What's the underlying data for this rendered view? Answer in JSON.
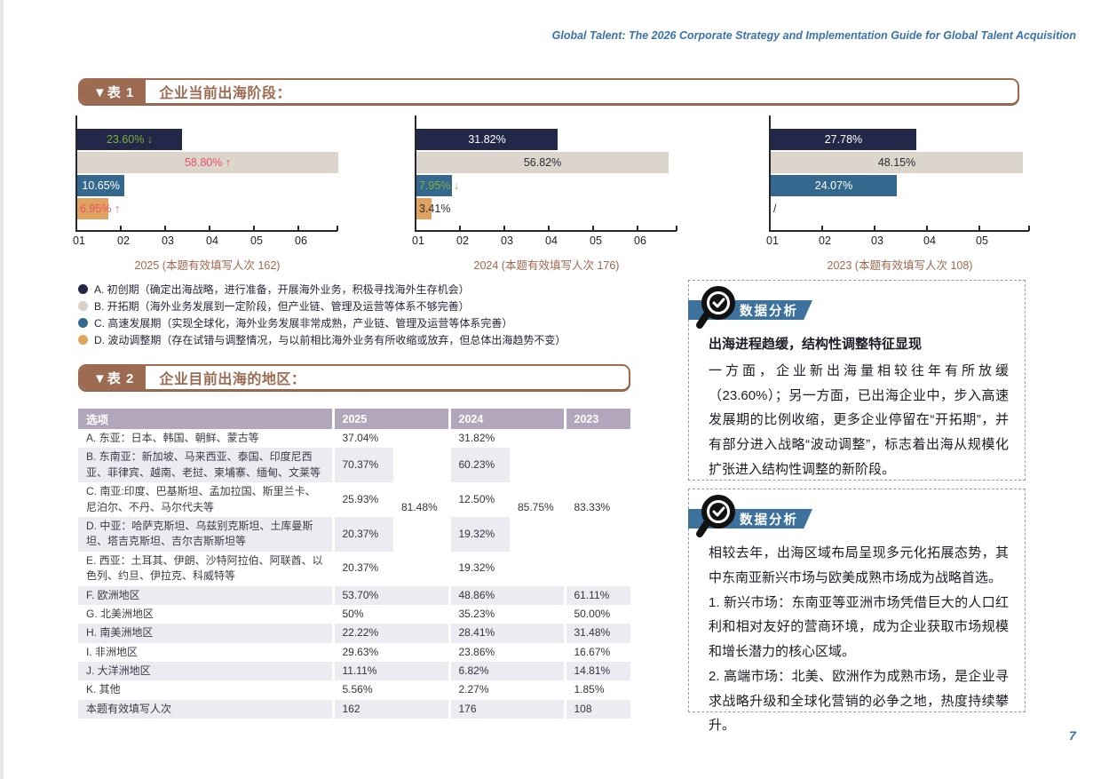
{
  "page": {
    "header_title": "Global Talent: The 2026 Corporate Strategy and Implementation Guide for Global Talent Acquisition",
    "page_number": "7"
  },
  "colors": {
    "brand_brown": "#9c6b52",
    "bar_navy": "#232849",
    "bar_beige": "#dcd5cb",
    "bar_blue": "#35688f",
    "bar_orange": "#e0a35f",
    "label_green": "#7fae3d",
    "label_red": "#e85168",
    "table_header_purple": "#b1a6bc",
    "badge_blue": "#3d729e",
    "accent_blue": "#3a72ae"
  },
  "table1_banner": {
    "tag": "▼表 1",
    "title": "企业当前出海阶段："
  },
  "table2_banner": {
    "tag": "▼表 2",
    "title": "企业目前出海的地区："
  },
  "chart_data": [
    {
      "type": "bar",
      "orientation": "horizontal",
      "caption": "2025 (本题有效填写人次 162)",
      "categories": [
        "A. 初创期",
        "B. 开拓期",
        "C. 高速发展期",
        "D. 波动调整期"
      ],
      "values": [
        23.6,
        58.8,
        10.65,
        6.95
      ],
      "x_ticks": [
        "01",
        "02",
        "03",
        "04",
        "05",
        "06"
      ],
      "tick_step_pct": 10,
      "bars": [
        {
          "label": "23.60%",
          "arrow": "↓",
          "label_color": "#7fae3d",
          "align": "center",
          "color": "#232849"
        },
        {
          "label": "58.80%",
          "arrow": "↑",
          "label_color": "#e85168",
          "align": "center",
          "color": "#dcd5cb"
        },
        {
          "label": "10.65%",
          "arrow": "",
          "label_color": "#ffffff",
          "align": "center",
          "color": "#35688f"
        },
        {
          "label": "6.95%",
          "arrow": "↑",
          "label_color": "#e85168",
          "align": "left",
          "color": "#e0a35f"
        }
      ]
    },
    {
      "type": "bar",
      "orientation": "horizontal",
      "caption": "2024 (本题有效填写人次 176)",
      "categories": [
        "A. 初创期",
        "B. 开拓期",
        "C. 高速发展期",
        "D. 波动调整期"
      ],
      "values": [
        31.82,
        56.82,
        7.95,
        3.41
      ],
      "x_ticks": [
        "01",
        "02",
        "03",
        "04",
        "05",
        "06"
      ],
      "tick_step_pct": 10,
      "bars": [
        {
          "label": "31.82%",
          "arrow": "",
          "label_color": "#ffffff",
          "align": "center",
          "color": "#232849"
        },
        {
          "label": "56.82%",
          "arrow": "",
          "label_color": "#2b2b35",
          "align": "center",
          "color": "#dcd5cb"
        },
        {
          "label": "7.95%",
          "arrow": "↓",
          "label_color": "#7fae3d",
          "align": "left",
          "color": "#35688f"
        },
        {
          "label": "3.41%",
          "arrow": "",
          "label_color": "#2b2b35",
          "align": "left",
          "color": "#e0a35f"
        }
      ]
    },
    {
      "type": "bar",
      "orientation": "horizontal",
      "caption": "2023 (本题有效填写人次 108)",
      "categories": [
        "A. 初创期",
        "B. 开拓期",
        "C. 高速发展期",
        "D. 波动调整期"
      ],
      "values": [
        27.78,
        48.15,
        24.07,
        0
      ],
      "x_ticks": [
        "01",
        "02",
        "03",
        "04",
        "05"
      ],
      "tick_step_pct": 10,
      "bars": [
        {
          "label": "27.78%",
          "arrow": "",
          "label_color": "#ffffff",
          "align": "center",
          "color": "#232849"
        },
        {
          "label": "48.15%",
          "arrow": "",
          "label_color": "#2b2b35",
          "align": "center",
          "color": "#dcd5cb"
        },
        {
          "label": "24.07%",
          "arrow": "",
          "label_color": "#ffffff",
          "align": "center",
          "color": "#35688f"
        },
        {
          "label": "/",
          "arrow": "",
          "label_color": "#2b2b35",
          "align": "left",
          "color": "transparent"
        }
      ]
    }
  ],
  "legend": [
    {
      "color": "#232849",
      "text": "A. 初创期（确定出海战略，进行准备，开展海外业务，积极寻找海外生存机会）"
    },
    {
      "color": "#d8d1c7",
      "text": "B. 开拓期（海外业务发展到一定阶段，但产业链、管理及运营等体系不够完善）"
    },
    {
      "color": "#35688f",
      "text": "C. 高速发展期（实现全球化，海外业务发展非常成熟，产业链、管理及运营等体系完善）"
    },
    {
      "color": "#dfa45e",
      "text": "D. 波动调整期（存在试错与调整情况，与以前相比海外业务有所收缩或放弃，但总体出海趋势不变）"
    }
  ],
  "region_table": {
    "headers": {
      "option": "选项",
      "y2025": "2025",
      "y2024": "2024",
      "y2023": "2023"
    },
    "merged_totals": {
      "y2025": "81.48%",
      "y2024": "85.75%",
      "y2023": "83.33%"
    },
    "asia_rows": [
      {
        "label": "A. 东亚：日本、韩国、朝鲜、蒙古等",
        "v2025": "37.04%",
        "v2024": "31.82%"
      },
      {
        "label": "B. 东南亚：新加坡、马来西亚、泰国、印度尼西亚、菲律宾、越南、老挝、柬埔寨、缅甸、文莱等",
        "v2025": "70.37%",
        "v2024": "60.23%"
      },
      {
        "label": "C. 南亚:印度、巴基斯坦、孟加拉国、斯里兰卡、尼泊尔、不丹、马尔代夫等",
        "v2025": "25.93%",
        "v2024": "12.50%"
      },
      {
        "label": "D. 中亚：哈萨克斯坦、乌兹别克斯坦、土库曼斯坦、塔吉克斯坦、吉尔吉斯斯坦等",
        "v2025": "20.37%",
        "v2024": "19.32%"
      },
      {
        "label": "E. 西亚：土耳其、伊朗、沙特阿拉伯、阿联酋、以色列、约旦、伊拉克、科威特等",
        "v2025": "20.37%",
        "v2024": "19.32%"
      }
    ],
    "other_rows": [
      {
        "label": "F. 欧洲地区",
        "v2025": "53.70%",
        "v2024": "48.86%",
        "v2023": "61.11%"
      },
      {
        "label": "G. 北美洲地区",
        "v2025": "50%",
        "v2024": "35.23%",
        "v2023": "50.00%"
      },
      {
        "label": "H. 南美洲地区",
        "v2025": "22.22%",
        "v2024": "28.41%",
        "v2023": "31.48%"
      },
      {
        "label": "I. 非洲地区",
        "v2025": "29.63%",
        "v2024": "23.86%",
        "v2023": "16.67%"
      },
      {
        "label": "J. 大洋洲地区",
        "v2025": "11.11%",
        "v2024": "6.82%",
        "v2023": "14.81%"
      },
      {
        "label": "K. 其他",
        "v2025": "5.56%",
        "v2024": "2.27%",
        "v2023": "1.85%"
      },
      {
        "label": "本题有效填写人次",
        "v2025": "162",
        "v2024": "176",
        "v2023": "108"
      }
    ]
  },
  "analysis_boxes": [
    {
      "badge": "数据分析",
      "title": "出海进程趋缓，结构性调整特征显现",
      "paragraphs": [
        "一方面，企业新出海量相较往年有所放缓（23.60%）；另一方面，已出海企业中，步入高速发展期的比例收缩，更多企业停留在“开拓期”，并有部分进入战略“波动调整”，标志着出海从规模化扩张进入结构性调整的新阶段。"
      ]
    },
    {
      "badge": "数据分析",
      "title": "",
      "paragraphs": [
        "相较去年，出海区域布局呈现多元化拓展态势，其中东南亚新兴市场与欧美成熟市场成为战略首选。",
        "1. 新兴市场：东南亚等亚洲市场凭借巨大的人口红利和相对友好的营商环境，成为企业获取市场规模和增长潜力的核心区域。",
        "2. 高端市场：北美、欧洲作为成熟市场，是企业寻求战略升级和全球化营销的必争之地，热度持续攀升。"
      ]
    }
  ]
}
